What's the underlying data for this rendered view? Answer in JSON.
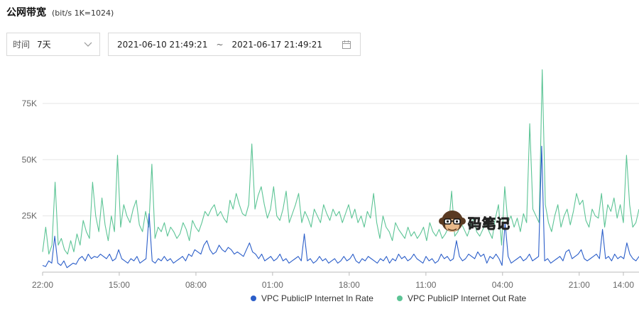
{
  "header": {
    "title": "公网带宽",
    "unit_note": "(bit/s  1K=1024)"
  },
  "filters": {
    "time_label": "时间",
    "time_value": "7天",
    "range_start": "2021-06-10 21:49:21",
    "range_sep": "~",
    "range_end": "2021-06-17 21:49:21"
  },
  "watermark": {
    "text": "码笔记"
  },
  "colors": {
    "in": "#2b5ec9",
    "out": "#5cc495",
    "grid": "#e6e6e6",
    "axis": "#bbbbbb"
  },
  "chart_data": {
    "type": "line",
    "ylim": [
      0,
      92000
    ],
    "y_ticks": [
      {
        "value": 25000,
        "label": "25K"
      },
      {
        "value": 50000,
        "label": "50K"
      },
      {
        "value": 75000,
        "label": "75K"
      }
    ],
    "x_ticks": [
      {
        "label": "22:00",
        "pos": 0.0
      },
      {
        "label": "15:00",
        "pos": 0.1285
      },
      {
        "label": "08:00",
        "pos": 0.2571
      },
      {
        "label": "01:00",
        "pos": 0.3856
      },
      {
        "label": "18:00",
        "pos": 0.5141
      },
      {
        "label": "11:00",
        "pos": 0.6427
      },
      {
        "label": "04:00",
        "pos": 0.7712
      },
      {
        "label": "21:00",
        "pos": 0.8997
      },
      {
        "label": "14:00",
        "pos": 0.9738
      }
    ],
    "legend_position": "bottom-center",
    "series": [
      {
        "name": "VPC PublicIP Internet In Rate",
        "color": "#2b5ec9",
        "values": [
          3000,
          2500,
          5000,
          4000,
          16000,
          4000,
          3000,
          5000,
          2000,
          3000,
          4000,
          3500,
          6000,
          7000,
          5000,
          8000,
          6000,
          7000,
          6500,
          8000,
          7000,
          6000,
          8000,
          5000,
          6000,
          10000,
          6000,
          5000,
          4000,
          6000,
          5000,
          7000,
          4000,
          5000,
          6000,
          26000,
          5000,
          4000,
          6000,
          5000,
          7000,
          5000,
          6000,
          4000,
          5000,
          6000,
          7000,
          5000,
          8000,
          7000,
          10000,
          9000,
          8000,
          12000,
          14000,
          10000,
          8000,
          9000,
          12000,
          10000,
          9000,
          11000,
          10000,
          8000,
          9000,
          8000,
          7000,
          10000,
          13000,
          9000,
          8000,
          6000,
          8000,
          5000,
          6000,
          7000,
          5000,
          6000,
          8000,
          5000,
          6000,
          4000,
          5000,
          6000,
          7000,
          5000,
          17000,
          5000,
          6000,
          4000,
          5000,
          7000,
          5000,
          6000,
          4000,
          5000,
          6000,
          4000,
          5000,
          7000,
          5000,
          6000,
          8000,
          5000,
          4000,
          6000,
          5000,
          7000,
          6000,
          5000,
          4000,
          6000,
          5000,
          7000,
          4000,
          6000,
          5000,
          8000,
          6000,
          7000,
          5000,
          6000,
          8000,
          6000,
          5000,
          4000,
          7000,
          5000,
          6000,
          4000,
          5000,
          8000,
          6000,
          7000,
          5000,
          6000,
          14000,
          7000,
          5000,
          6000,
          8000,
          7000,
          6000,
          9000,
          7000,
          8000,
          4000,
          7000,
          6000,
          8000,
          6000,
          3000,
          22000,
          7000,
          4000,
          5000,
          6000,
          7000,
          5000,
          6000,
          8000,
          5000,
          6000,
          7000,
          56000,
          5000,
          6000,
          4000,
          5000,
          6000,
          7000,
          5000,
          9000,
          10000,
          6000,
          7000,
          8000,
          10000,
          6000,
          5000,
          6000,
          7000,
          8000,
          6000,
          19000,
          6000,
          7000,
          5000,
          8000,
          6000,
          7000,
          6000,
          13000,
          8000,
          6000,
          5000,
          7000
        ]
      },
      {
        "name": "VPC PublicIP Internet Out Rate",
        "color": "#5cc495",
        "values": [
          9000,
          20000,
          8000,
          12000,
          40000,
          12000,
          15000,
          10000,
          8000,
          14000,
          9000,
          17000,
          12000,
          23000,
          18000,
          15000,
          40000,
          25000,
          18000,
          33000,
          21000,
          14000,
          25000,
          18000,
          52000,
          20000,
          30000,
          25000,
          22000,
          28000,
          32000,
          21000,
          18000,
          27000,
          20000,
          48000,
          15000,
          20000,
          18000,
          22000,
          16000,
          20000,
          18000,
          15000,
          17000,
          22000,
          19000,
          14000,
          23000,
          20000,
          18000,
          22000,
          27000,
          25000,
          28000,
          30000,
          25000,
          27000,
          24000,
          22000,
          32000,
          28000,
          35000,
          30000,
          26000,
          25000,
          30000,
          57000,
          28000,
          34000,
          38000,
          30000,
          24000,
          28000,
          38000,
          25000,
          23000,
          28000,
          36000,
          22000,
          26000,
          30000,
          35000,
          22000,
          27000,
          24000,
          20000,
          28000,
          25000,
          22000,
          30000,
          26000,
          23000,
          28000,
          25000,
          27000,
          22000,
          26000,
          30000,
          24000,
          28000,
          22000,
          25000,
          20000,
          27000,
          24000,
          35000,
          22000,
          15000,
          25000,
          20000,
          18000,
          14000,
          22000,
          19000,
          17000,
          15000,
          20000,
          16000,
          18000,
          15000,
          17000,
          20000,
          14000,
          22000,
          18000,
          16000,
          19000,
          15000,
          17000,
          20000,
          36000,
          16000,
          18000,
          22000,
          19000,
          16000,
          20000,
          24000,
          18000,
          16000,
          19000,
          22000,
          18000,
          15000,
          24000,
          30000,
          12000,
          38000,
          22000,
          25000,
          20000,
          24000,
          18000,
          26000,
          22000,
          66000,
          28000,
          25000,
          22000,
          90000,
          30000,
          22000,
          18000,
          25000,
          30000,
          20000,
          25000,
          28000,
          21000,
          27000,
          35000,
          30000,
          32000,
          23000,
          20000,
          28000,
          25000,
          24000,
          35000,
          20000,
          30000,
          27000,
          33000,
          24000,
          30000,
          22000,
          52000,
          30000,
          20000,
          22000,
          28000
        ]
      }
    ]
  }
}
